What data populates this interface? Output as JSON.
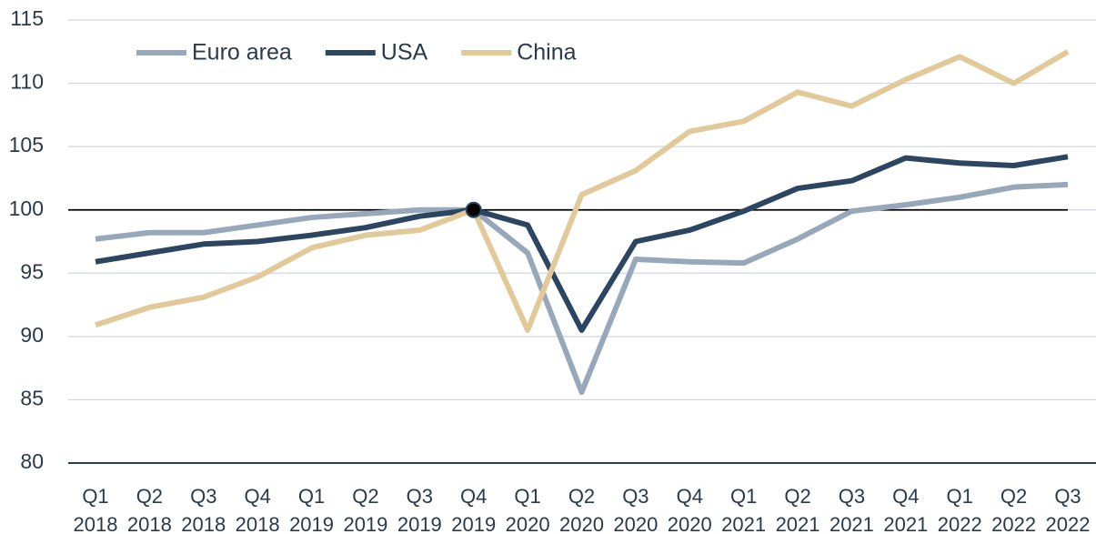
{
  "chart_data": {
    "type": "line",
    "categories": [
      "Q1 2018",
      "Q2 2018",
      "Q3 2018",
      "Q4 2018",
      "Q1 2019",
      "Q2 2019",
      "Q3 2019",
      "Q4 2019",
      "Q1 2020",
      "Q2 2020",
      "Q3 2020",
      "Q4 2020",
      "Q1 2021",
      "Q2 2021",
      "Q3 2021",
      "Q4 2021",
      "Q1 2022",
      "Q2 2022",
      "Q3 2022"
    ],
    "series": [
      {
        "name": "Euro area",
        "color": "#97a8ba",
        "values": [
          97.7,
          98.2,
          98.2,
          98.8,
          99.4,
          99.7,
          100,
          100,
          96.6,
          85.6,
          96.1,
          95.9,
          95.8,
          97.7,
          99.9,
          100.4,
          101.0,
          101.8,
          102.0
        ]
      },
      {
        "name": "USA",
        "color": "#2c4560",
        "values": [
          95.9,
          96.6,
          97.3,
          97.5,
          98.0,
          98.6,
          99.5,
          100,
          98.8,
          90.5,
          97.5,
          98.4,
          99.9,
          101.7,
          102.3,
          104.1,
          103.7,
          103.5,
          104.2
        ]
      },
      {
        "name": "China",
        "color": "#e2c999",
        "values": [
          90.9,
          92.3,
          93.1,
          94.7,
          97.0,
          98.0,
          98.4,
          100,
          90.5,
          101.2,
          103.1,
          106.2,
          107.0,
          109.3,
          108.2,
          110.3,
          112.1,
          110.0,
          112.5
        ]
      }
    ],
    "ylim": [
      80,
      115
    ],
    "yticks": [
      80,
      85,
      90,
      95,
      100,
      105,
      110,
      115
    ],
    "grid": true,
    "reference_line": 100,
    "legend": "top-left"
  }
}
